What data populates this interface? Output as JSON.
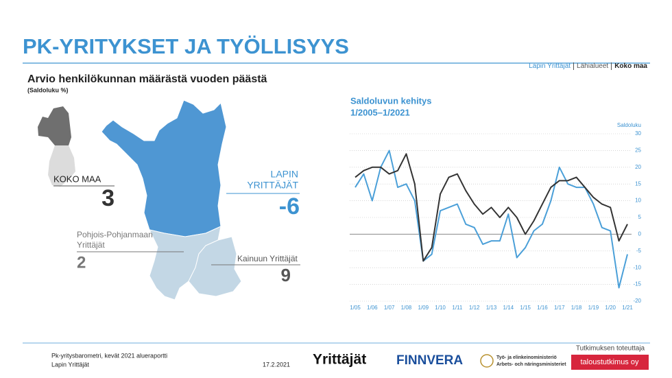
{
  "title": "PK-YRITYKSET JA TYÖLLISYYS",
  "nav": [
    "Lapin Yrittäjät",
    "Lähialueet",
    "Koko maa"
  ],
  "subtitle": "Arvio henkilökunnan määrästä vuoden päästä",
  "subtitle_note": "(Saldoluku %)",
  "map_labels": {
    "koko_maa": {
      "name": "KOKO MAA",
      "value": 3
    },
    "lappi": {
      "name": [
        "LAPIN",
        "YRITTÄJÄT"
      ],
      "value": -6
    },
    "pohjois_pohjanmaa": {
      "name": [
        "Pohjois-Pohjanmaan",
        "Yrittäjät"
      ],
      "value": 2
    },
    "kainuu": {
      "name": "Kainuun Yrittäjät",
      "value": 9
    }
  },
  "chart_data": {
    "type": "line",
    "title": [
      "Saldoluvun kehitys",
      "1/2005–1/2021"
    ],
    "y_label": "Saldoluku",
    "categories": [
      "1/05",
      null,
      "1/06",
      null,
      "1/07",
      null,
      "1/08",
      null,
      "1/09",
      null,
      "1/10",
      null,
      "1/11",
      null,
      "1/12",
      null,
      "1/13",
      null,
      "1/14",
      null,
      "1/15",
      null,
      "1/16",
      null,
      "1/17",
      null,
      "1/18",
      null,
      "1/19",
      null,
      "1/20",
      null,
      "1/21"
    ],
    "series": [
      {
        "color": "#4a9fd8",
        "values": [
          14,
          18,
          10,
          20,
          25,
          14,
          15,
          10,
          -8,
          -6,
          7,
          8,
          9,
          3,
          2,
          -3,
          -2,
          -2,
          6,
          -7,
          -4,
          1,
          3,
          10,
          20,
          15,
          14,
          14,
          9,
          2,
          1,
          -16,
          -6
        ]
      },
      {
        "color": "#333333",
        "values": [
          17,
          19,
          20,
          20,
          18,
          19,
          24,
          15,
          -8,
          -4,
          12,
          17,
          18,
          13,
          9,
          6,
          8,
          5,
          8,
          5,
          0,
          4,
          9,
          14,
          16,
          16,
          17,
          14,
          11,
          9,
          8,
          -2,
          3
        ]
      }
    ],
    "ylim": [
      -20,
      30
    ],
    "yticks": [
      30,
      25,
      20,
      15,
      10,
      5,
      0,
      -5,
      -10,
      -15,
      -20
    ],
    "grid": true
  },
  "footer": {
    "source": "Pk-yritysbarometri, kevät 2021 alueraportti",
    "region": "Lapin Yrittäjät",
    "date": "17.2.2021",
    "logos": [
      "Yrittäjät",
      "FINNVERA",
      "Työ- ja elinkeinoministeriö",
      "Arbets- och näringsministeriet"
    ],
    "provider_label": "Tutkimuksen toteuttaja",
    "provider": "taloustutkimus oy"
  }
}
